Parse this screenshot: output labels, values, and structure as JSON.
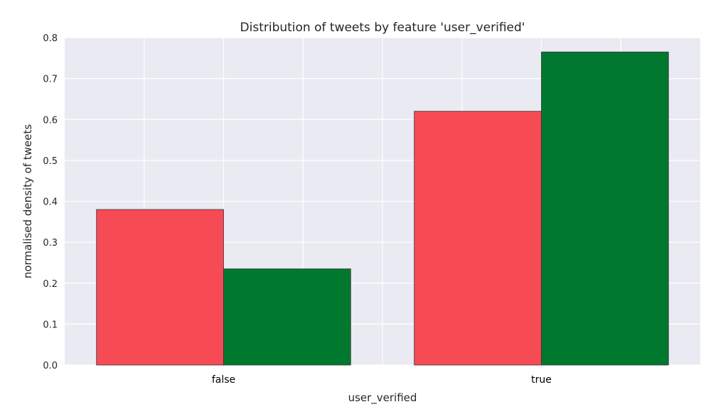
{
  "chart_data": {
    "type": "bar",
    "title": "Distribution of tweets by feature 'user_verified'",
    "xlabel": "user_verified",
    "ylabel": "normalised density of tweets",
    "categories": [
      "false",
      "true"
    ],
    "series": [
      {
        "values": [
          0.38,
          0.62
        ],
        "color": "#f64a54"
      },
      {
        "values": [
          0.235,
          0.765
        ],
        "color": "#00782f"
      }
    ],
    "ylim": [
      0,
      0.8
    ],
    "yticks": [
      "0.0",
      "0.1",
      "0.2",
      "0.3",
      "0.4",
      "0.5",
      "0.6",
      "0.7",
      "0.8"
    ],
    "grid": true,
    "background": "#eaeaf2"
  }
}
